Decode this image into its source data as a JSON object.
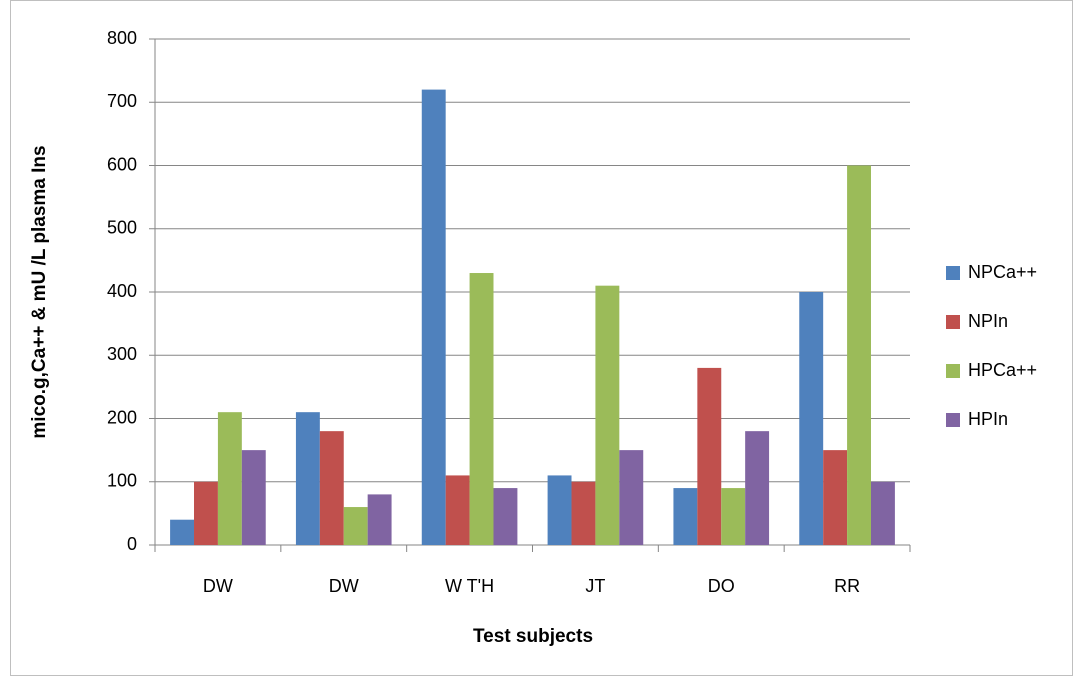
{
  "chart_data": {
    "type": "bar",
    "categories": [
      "DW",
      "DW",
      "W T'H",
      "JT",
      "DO",
      "RR"
    ],
    "series": [
      {
        "name": "NPCa++",
        "color": "#4f81bd",
        "values": [
          40,
          210,
          720,
          110,
          90,
          400
        ]
      },
      {
        "name": "NPIn",
        "color": "#c0504d",
        "values": [
          100,
          180,
          110,
          100,
          280,
          150
        ]
      },
      {
        "name": "HPCa++",
        "color": "#9bbb59",
        "values": [
          210,
          60,
          430,
          410,
          90,
          600
        ]
      },
      {
        "name": "HPIn",
        "color": "#8064a2",
        "values": [
          150,
          80,
          90,
          150,
          180,
          100
        ]
      }
    ],
    "x_label": "Test subjects",
    "y_label": "mico.g,Ca++ & mU /L plasma Ins",
    "ylim": [
      0,
      800
    ],
    "yticks": [
      0,
      100,
      200,
      300,
      400,
      500,
      600,
      700,
      800
    ],
    "grid": true,
    "legend": "right"
  }
}
